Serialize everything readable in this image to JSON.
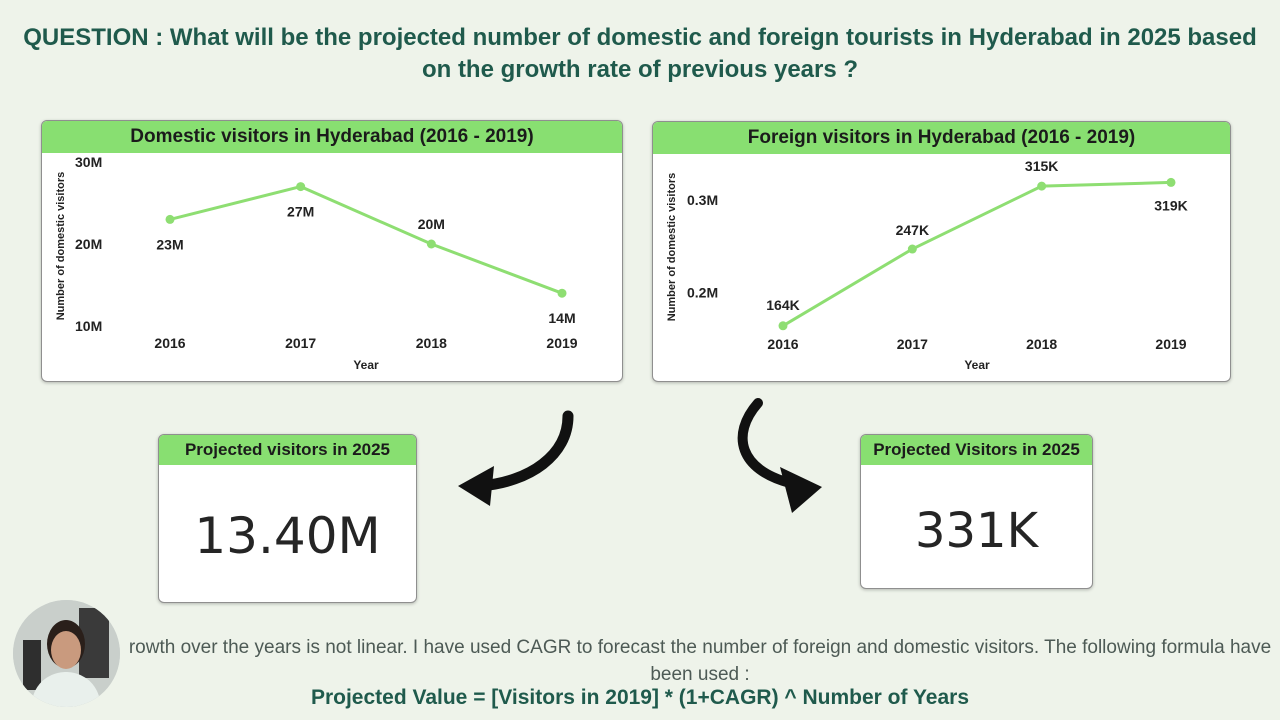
{
  "question": "QUESTION : What will be the projected number of domestic and foreign tourists in Hyderabad in 2025 based on the growth rate of previous years ?",
  "charts": {
    "domestic": {
      "title": "Domestic visitors in Hyderabad (2016 - 2019)"
    },
    "foreign": {
      "title": "Foreign visitors in Hyderabad (2016 - 2019)"
    }
  },
  "chart_data": [
    {
      "type": "line",
      "title": "Domestic visitors in Hyderabad (2016 - 2019)",
      "xlabel": "Year",
      "ylabel": "Number of domestic visitors",
      "categories": [
        "2016",
        "2017",
        "2018",
        "2019"
      ],
      "values": [
        23,
        27,
        20,
        14
      ],
      "data_labels": [
        "23M",
        "27M",
        "20M",
        "14M"
      ],
      "yticks": [
        "10M",
        "20M",
        "30M"
      ],
      "ytick_values": [
        10,
        20,
        30
      ],
      "ylim": [
        10,
        30
      ],
      "grid": false,
      "color": "#8ede72"
    },
    {
      "type": "line",
      "title": "Foreign visitors in Hyderabad (2016 - 2019)",
      "xlabel": "Year",
      "ylabel": "Number of domestic visitors",
      "categories": [
        "2016",
        "2017",
        "2018",
        "2019"
      ],
      "values": [
        164,
        247,
        315,
        319
      ],
      "data_labels": [
        "164K",
        "247K",
        "315K",
        "319K"
      ],
      "yticks": [
        "0.2M",
        "0.3M"
      ],
      "ytick_values": [
        200,
        300
      ],
      "ylim": [
        140,
        340
      ],
      "grid": false,
      "color": "#8ede72"
    }
  ],
  "kpis": {
    "domestic": {
      "title": "Projected visitors in 2025",
      "value": "13.40M"
    },
    "foreign": {
      "title": "Projected Visitors in 2025",
      "value": "331K"
    }
  },
  "caption": "rowth over the years is not linear. I have used CAGR to forecast the number of foreign and domestic visitors. The following formula have been used :",
  "formula": "Projected Value = [Visitors in 2019] * (1+CAGR) ^ Number of Years",
  "icons": {
    "arrow_left": "curved-arrow-icon",
    "arrow_right": "curved-arrow-icon"
  }
}
